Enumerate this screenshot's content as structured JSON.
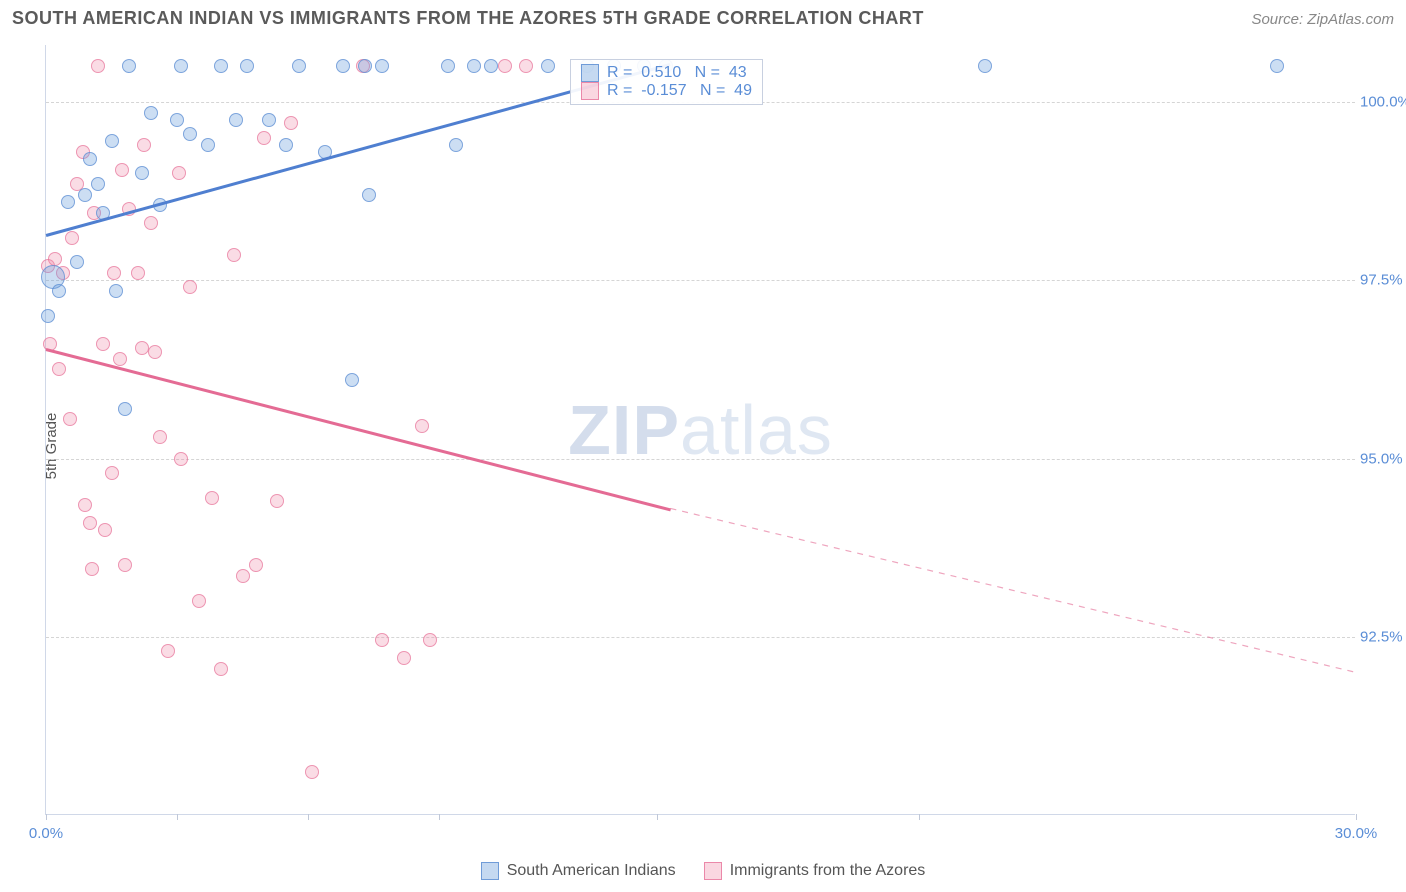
{
  "header": {
    "title": "SOUTH AMERICAN INDIAN VS IMMIGRANTS FROM THE AZORES 5TH GRADE CORRELATION CHART",
    "source": "Source: ZipAtlas.com"
  },
  "watermark": {
    "bold": "ZIP",
    "light": "atlas"
  },
  "axes": {
    "ylabel": "5th Grade",
    "xlim": [
      0,
      30
    ],
    "ylim": [
      90.0,
      100.8
    ],
    "yticks": [
      {
        "v": 92.5,
        "label": "92.5%"
      },
      {
        "v": 95.0,
        "label": "95.0%"
      },
      {
        "v": 97.5,
        "label": "97.5%"
      },
      {
        "v": 100.0,
        "label": "100.0%"
      }
    ],
    "xticks": [
      {
        "v": 0,
        "label": "0.0%"
      },
      {
        "v": 3,
        "label": ""
      },
      {
        "v": 6,
        "label": ""
      },
      {
        "v": 9,
        "label": ""
      },
      {
        "v": 14,
        "label": ""
      },
      {
        "v": 20,
        "label": ""
      },
      {
        "v": 30,
        "label": "30.0%"
      }
    ],
    "grid_color": "#d5d5d5",
    "tick_color_text": "#5a8dd6"
  },
  "series": {
    "blue": {
      "name": "South American Indians",
      "color_fill": "rgba(110,160,220,0.35)",
      "color_stroke": "rgba(90,140,210,0.7)",
      "marker_size_default": 16,
      "correlation": {
        "r": "0.510",
        "n": "43"
      },
      "trend": {
        "x1": 0,
        "y1": 98.15,
        "x2": 14.3,
        "y2": 100.55,
        "solid": true,
        "color": "#4f7fd0"
      },
      "points": [
        {
          "x": 0.15,
          "y": 97.55,
          "r": 24
        },
        {
          "x": 0.05,
          "y": 97.0,
          "r": 14
        },
        {
          "x": 0.3,
          "y": 97.35,
          "r": 14
        },
        {
          "x": 0.5,
          "y": 98.6,
          "r": 14
        },
        {
          "x": 0.7,
          "y": 97.75,
          "r": 14
        },
        {
          "x": 0.9,
          "y": 98.7,
          "r": 14
        },
        {
          "x": 1.0,
          "y": 99.2,
          "r": 14
        },
        {
          "x": 1.2,
          "y": 98.85,
          "r": 14
        },
        {
          "x": 1.3,
          "y": 98.45,
          "r": 14
        },
        {
          "x": 1.5,
          "y": 99.45,
          "r": 14
        },
        {
          "x": 1.6,
          "y": 97.35,
          "r": 14
        },
        {
          "x": 1.8,
          "y": 95.7,
          "r": 14
        },
        {
          "x": 1.9,
          "y": 100.5,
          "r": 14
        },
        {
          "x": 2.2,
          "y": 99.0,
          "r": 14
        },
        {
          "x": 2.4,
          "y": 99.85,
          "r": 14
        },
        {
          "x": 2.6,
          "y": 98.55,
          "r": 14
        },
        {
          "x": 3.0,
          "y": 99.75,
          "r": 14
        },
        {
          "x": 3.1,
          "y": 100.5,
          "r": 14
        },
        {
          "x": 3.3,
          "y": 99.55,
          "r": 14
        },
        {
          "x": 3.7,
          "y": 99.4,
          "r": 14
        },
        {
          "x": 4.0,
          "y": 100.5,
          "r": 14
        },
        {
          "x": 4.35,
          "y": 99.75,
          "r": 14
        },
        {
          "x": 4.6,
          "y": 100.5,
          "r": 14
        },
        {
          "x": 5.1,
          "y": 99.75,
          "r": 14
        },
        {
          "x": 5.5,
          "y": 99.4,
          "r": 14
        },
        {
          "x": 5.8,
          "y": 100.5,
          "r": 14
        },
        {
          "x": 6.4,
          "y": 99.3,
          "r": 14
        },
        {
          "x": 6.8,
          "y": 100.5,
          "r": 14
        },
        {
          "x": 7.0,
          "y": 96.1,
          "r": 14
        },
        {
          "x": 7.3,
          "y": 100.5,
          "r": 14
        },
        {
          "x": 7.4,
          "y": 98.7,
          "r": 14
        },
        {
          "x": 7.7,
          "y": 100.5,
          "r": 14
        },
        {
          "x": 9.2,
          "y": 100.5,
          "r": 14
        },
        {
          "x": 9.4,
          "y": 99.4,
          "r": 14
        },
        {
          "x": 9.8,
          "y": 100.5,
          "r": 14
        },
        {
          "x": 10.2,
          "y": 100.5,
          "r": 14
        },
        {
          "x": 11.5,
          "y": 100.5,
          "r": 14
        },
        {
          "x": 12.4,
          "y": 100.5,
          "r": 14
        },
        {
          "x": 13.0,
          "y": 100.5,
          "r": 14
        },
        {
          "x": 13.7,
          "y": 100.5,
          "r": 14
        },
        {
          "x": 14.2,
          "y": 100.5,
          "r": 14
        },
        {
          "x": 21.5,
          "y": 100.5,
          "r": 14
        },
        {
          "x": 28.2,
          "y": 100.5,
          "r": 14
        }
      ]
    },
    "pink": {
      "name": "Immigrants from the Azores",
      "color_fill": "rgba(240,140,170,0.3)",
      "color_stroke": "rgba(230,110,150,0.65)",
      "marker_size_default": 16,
      "correlation": {
        "r": "-0.157",
        "n": "49"
      },
      "trend": {
        "x1": 0,
        "y1": 96.55,
        "x2": 14.3,
        "y2": 94.3,
        "solid": true,
        "color": "#e46b94",
        "dash_ext": {
          "x2": 30,
          "y2": 92.0
        }
      },
      "points": [
        {
          "x": 0.1,
          "y": 96.6,
          "r": 14
        },
        {
          "x": 0.05,
          "y": 97.7,
          "r": 14
        },
        {
          "x": 0.2,
          "y": 97.8,
          "r": 14
        },
        {
          "x": 0.4,
          "y": 97.6,
          "r": 14
        },
        {
          "x": 0.3,
          "y": 96.25,
          "r": 14
        },
        {
          "x": 0.55,
          "y": 95.55,
          "r": 14
        },
        {
          "x": 0.6,
          "y": 98.1,
          "r": 14
        },
        {
          "x": 0.7,
          "y": 98.85,
          "r": 14
        },
        {
          "x": 0.85,
          "y": 99.3,
          "r": 14
        },
        {
          "x": 0.9,
          "y": 94.35,
          "r": 14
        },
        {
          "x": 1.0,
          "y": 94.1,
          "r": 14
        },
        {
          "x": 1.05,
          "y": 93.45,
          "r": 14
        },
        {
          "x": 1.1,
          "y": 98.45,
          "r": 14
        },
        {
          "x": 1.2,
          "y": 100.5,
          "r": 14
        },
        {
          "x": 1.3,
          "y": 96.6,
          "r": 14
        },
        {
          "x": 1.35,
          "y": 94.0,
          "r": 14
        },
        {
          "x": 1.5,
          "y": 94.8,
          "r": 14
        },
        {
          "x": 1.55,
          "y": 97.6,
          "r": 14
        },
        {
          "x": 1.7,
          "y": 96.4,
          "r": 14
        },
        {
          "x": 1.75,
          "y": 99.05,
          "r": 14
        },
        {
          "x": 1.8,
          "y": 93.5,
          "r": 14
        },
        {
          "x": 1.9,
          "y": 98.5,
          "r": 14
        },
        {
          "x": 2.1,
          "y": 97.6,
          "r": 14
        },
        {
          "x": 2.2,
          "y": 96.55,
          "r": 14
        },
        {
          "x": 2.25,
          "y": 99.4,
          "r": 14
        },
        {
          "x": 2.4,
          "y": 98.3,
          "r": 14
        },
        {
          "x": 2.5,
          "y": 96.5,
          "r": 14
        },
        {
          "x": 2.6,
          "y": 95.3,
          "r": 14
        },
        {
          "x": 2.8,
          "y": 92.3,
          "r": 14
        },
        {
          "x": 3.05,
          "y": 99.0,
          "r": 14
        },
        {
          "x": 3.1,
          "y": 95.0,
          "r": 14
        },
        {
          "x": 3.3,
          "y": 97.4,
          "r": 14
        },
        {
          "x": 3.5,
          "y": 93.0,
          "r": 14
        },
        {
          "x": 3.8,
          "y": 94.45,
          "r": 14
        },
        {
          "x": 4.0,
          "y": 92.05,
          "r": 14
        },
        {
          "x": 4.3,
          "y": 97.85,
          "r": 14
        },
        {
          "x": 4.5,
          "y": 93.35,
          "r": 14
        },
        {
          "x": 4.8,
          "y": 93.5,
          "r": 14
        },
        {
          "x": 5.0,
          "y": 99.5,
          "r": 14
        },
        {
          "x": 5.3,
          "y": 94.4,
          "r": 14
        },
        {
          "x": 5.6,
          "y": 99.7,
          "r": 14
        },
        {
          "x": 6.1,
          "y": 90.6,
          "r": 14
        },
        {
          "x": 7.25,
          "y": 100.5,
          "r": 14
        },
        {
          "x": 7.7,
          "y": 92.45,
          "r": 14
        },
        {
          "x": 8.2,
          "y": 92.2,
          "r": 14
        },
        {
          "x": 8.6,
          "y": 95.45,
          "r": 14
        },
        {
          "x": 8.8,
          "y": 92.45,
          "r": 14
        },
        {
          "x": 10.5,
          "y": 100.5,
          "r": 14
        },
        {
          "x": 11.0,
          "y": 100.5,
          "r": 14
        }
      ]
    }
  },
  "legend_stats": {
    "rows": [
      {
        "sw": "blue",
        "r_label": "R =",
        "r_val": "0.510",
        "n_label": "N =",
        "n_val": "43"
      },
      {
        "sw": "pink",
        "r_label": "R =",
        "r_val": "-0.157",
        "n_label": "N =",
        "n_val": "49"
      }
    ]
  },
  "bottom_legend": {
    "items": [
      {
        "sw": "blue",
        "label": "South American Indians"
      },
      {
        "sw": "pink",
        "label": "Immigrants from the Azores"
      }
    ]
  }
}
